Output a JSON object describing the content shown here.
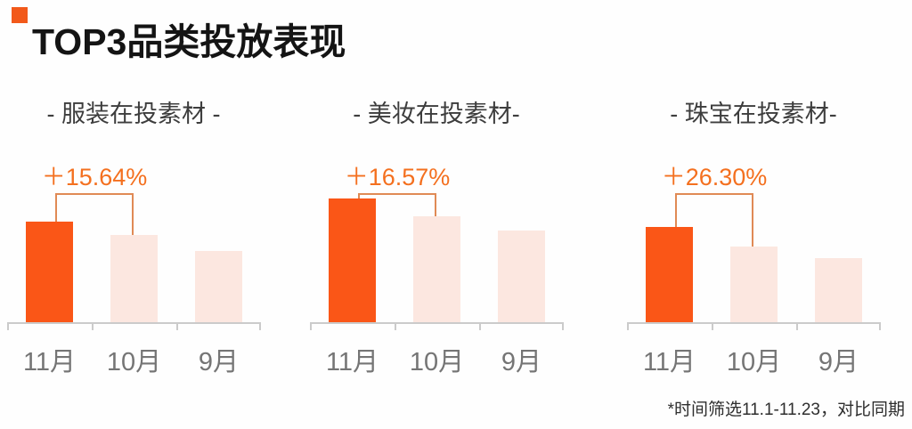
{
  "page": {
    "title": "TOP3品类投放表现",
    "footnote": "*时间筛选11.1-11.23，对比同期"
  },
  "colors": {
    "accent_orange": "#fa5617",
    "muted_bar_pink": "#fce7e0",
    "annotation_orange": "#f4701f",
    "bracket_orange": "#e08a55",
    "axis_gray": "#cbcbcb",
    "label_gray": "#757575"
  },
  "chart_data": [
    {
      "type": "bar",
      "title": "- 服装在投素材 -",
      "categories": [
        "11月",
        "10月",
        "9月"
      ],
      "values": [
        115.64,
        100,
        82
      ],
      "values_note": "relative scale, 10月=100; no numeric y-axis shown",
      "annotation": "＋15.64%",
      "annotation_compares": [
        "11月",
        "10月"
      ],
      "bar_colors": [
        "#fa5617",
        "#fce7e0",
        "#fce7e0"
      ],
      "y_axis": "none",
      "grid": false
    },
    {
      "type": "bar",
      "title": "- 美妆在投素材-",
      "categories": [
        "11月",
        "10月",
        "9月"
      ],
      "values": [
        116.57,
        100,
        86
      ],
      "values_note": "relative scale, 10月=100; no numeric y-axis shown",
      "annotation": "＋16.57%",
      "annotation_compares": [
        "11月",
        "10月"
      ],
      "bar_colors": [
        "#fa5617",
        "#fce7e0",
        "#fce7e0"
      ],
      "y_axis": "none",
      "grid": false
    },
    {
      "type": "bar",
      "title": "- 珠宝在投素材-",
      "categories": [
        "11月",
        "10月",
        "9月"
      ],
      "values": [
        126.3,
        100,
        85
      ],
      "values_note": "relative scale, 10月=100; no numeric y-axis shown",
      "annotation": "＋26.30%",
      "annotation_compares": [
        "11月",
        "10月"
      ],
      "bar_colors": [
        "#fa5617",
        "#fce7e0",
        "#fce7e0"
      ],
      "y_axis": "none",
      "grid": false
    }
  ]
}
